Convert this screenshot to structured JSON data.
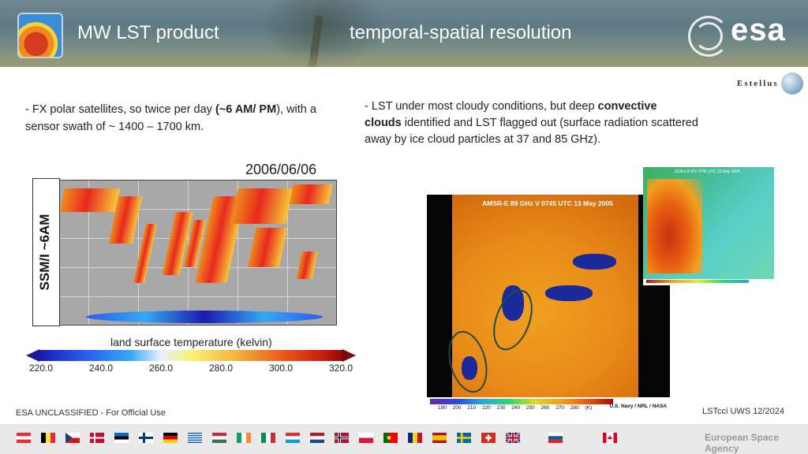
{
  "header": {
    "product_title": "MW LST product",
    "section_title": "temporal-spatial resolution",
    "logo_text": "esa"
  },
  "estellus": {
    "name": "Estellus"
  },
  "left_text": {
    "line_prefix": "- FX polar satellites, so twice per day ",
    "bold_part": "(~6 AM/ PM",
    "line_suffix": "), with a sensor swath of ~ 1400 – 1700 km."
  },
  "right_text": {
    "prefix": "- LST under most cloudy conditions, but deep ",
    "bold1": "convective",
    "bold2": "clouds",
    "suffix": " identified and LST flagged out (surface radiation scattered away by ice cloud particles at 37 and 85 GHz)."
  },
  "map": {
    "date": "2006/06/06",
    "side_label": "SSM/I ~6AM",
    "colorbar_title": "land surface temperature (kelvin)",
    "ticks": [
      "220.0",
      "240.0",
      "260.0",
      "280.0",
      "300.0",
      "320.0"
    ]
  },
  "satellite": {
    "main_banner": "AMSR-E 89 GHz V 0745 UTC 13 May 2005",
    "scale_numbers": "190 200 210 220 230 240 250 260 270 280 (K)",
    "credit": "U.S. Navy / NRL / NASA",
    "inset_banner": "GOES-8 WV 0745 UTC 13 May 2005"
  },
  "footer": {
    "classification": "ESA UNCLASSIFIED - For Official Use",
    "reference": "LSTcci UWS 12/2024",
    "agency": "European Space Agency",
    "flags": [
      "austria",
      "belgium",
      "czechia",
      "denmark",
      "estonia",
      "finland",
      "germany",
      "greece",
      "hungary",
      "ireland",
      "italy",
      "luxembourg",
      "netherlands",
      "norway",
      "poland",
      "portugal",
      "romania",
      "spain",
      "sweden",
      "switzerland",
      "united-kingdom",
      "slovenia",
      "canada"
    ]
  },
  "colors": {
    "header_text": "#ffffff",
    "accent_red": "#e8281e"
  }
}
